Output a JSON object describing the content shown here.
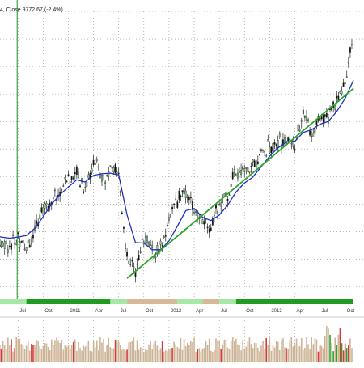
{
  "header": {
    "text": "4, Close 9772.67 (-2.4%)"
  },
  "colors": {
    "background": "#ffffff",
    "grid": "#8a8a8a",
    "up_candle": "#8fdc8f",
    "down_candle": "#111111",
    "moving_average": "#1f2fbf",
    "trendline": "#2aa52a",
    "marker_line": "#3aa83a",
    "band_dark_green": "#1f9b1f",
    "band_light_green": "#a6e8a6",
    "band_tan": "#d8b89a",
    "volume_up": "#cdb497",
    "volume_down": "#d63a3a",
    "volume_green": "#2aa52a"
  },
  "time_axis": {
    "ticks": [
      "Jul",
      "Oct",
      "2011",
      "Apr",
      "Jul",
      "Oct",
      "2012",
      "Apr",
      "Jul",
      "Oct",
      "2013",
      "Apr",
      "Jul",
      "Oct"
    ]
  },
  "chart_data": {
    "type": "candlestick",
    "title": "",
    "xlabel": "",
    "ylabel": "",
    "grid": true,
    "x": [
      "2010-04",
      "2010-05",
      "2010-06",
      "2010-07",
      "2010-08",
      "2010-09",
      "2010-10",
      "2010-11",
      "2010-12",
      "2011-01",
      "2011-02",
      "2011-03",
      "2011-04",
      "2011-05",
      "2011-06",
      "2011-07",
      "2011-08",
      "2011-09",
      "2011-10",
      "2011-11",
      "2011-12",
      "2012-01",
      "2012-02",
      "2012-03",
      "2012-04",
      "2012-05",
      "2012-06",
      "2012-07",
      "2012-08",
      "2012-09",
      "2012-10",
      "2012-11",
      "2012-12",
      "2013-01",
      "2013-02",
      "2013-03",
      "2013-04",
      "2013-05",
      "2013-06",
      "2013-07",
      "2013-08",
      "2013-09",
      "2013-10",
      "2013-11"
    ],
    "series": [
      {
        "values": [
          6250,
          6000,
          5950,
          6100,
          5900,
          6200,
          6600,
          6800,
          6950,
          7100,
          7300,
          6950,
          7500,
          7200,
          7300,
          7250,
          5700,
          5500,
          6100,
          5800,
          5900,
          6450,
          6750,
          6950,
          6600,
          6300,
          6350,
          6700,
          6900,
          7300,
          7250,
          7350,
          7600,
          7750,
          7850,
          7900,
          7800,
          8350,
          8000,
          8300,
          8250,
          8600,
          8900,
          9772.67
        ]
      },
      {
        "values": [
          6130,
          6100,
          6080,
          6100,
          6130,
          6260,
          6470,
          6700,
          6870,
          7010,
          7140,
          7100,
          7220,
          7250,
          7260,
          7230,
          6500,
          6000,
          5990,
          5870,
          5870,
          6030,
          6300,
          6580,
          6620,
          6460,
          6400,
          6500,
          6680,
          6920,
          7080,
          7190,
          7380,
          7570,
          7720,
          7830,
          7840,
          8000,
          8050,
          8150,
          8200,
          8380,
          8620,
          8950
        ]
      }
    ],
    "trendline": {
      "x": [
        "2011-08",
        "2013-11"
      ],
      "y": [
        5350,
        8800
      ]
    },
    "vertical_marker": {
      "x": "2010-07"
    },
    "ylim": [
      5000,
      10200
    ],
    "bands": [
      {
        "from": "2010-04",
        "to": "2010-08",
        "class": "light_green"
      },
      {
        "from": "2010-08",
        "to": "2010-09",
        "class": "dark_green"
      },
      {
        "from": "2010-09",
        "to": "2011-06",
        "class": "dark_green"
      },
      {
        "from": "2011-06",
        "to": "2011-08",
        "class": "light_green"
      },
      {
        "from": "2011-08",
        "to": "2012-02",
        "class": "tan"
      },
      {
        "from": "2012-02",
        "to": "2012-05",
        "class": "light_green"
      },
      {
        "from": "2012-05",
        "to": "2012-07",
        "class": "tan"
      },
      {
        "from": "2012-07",
        "to": "2012-09",
        "class": "light_green"
      },
      {
        "from": "2012-09",
        "to": "2013-11",
        "class": "dark_green"
      }
    ]
  }
}
